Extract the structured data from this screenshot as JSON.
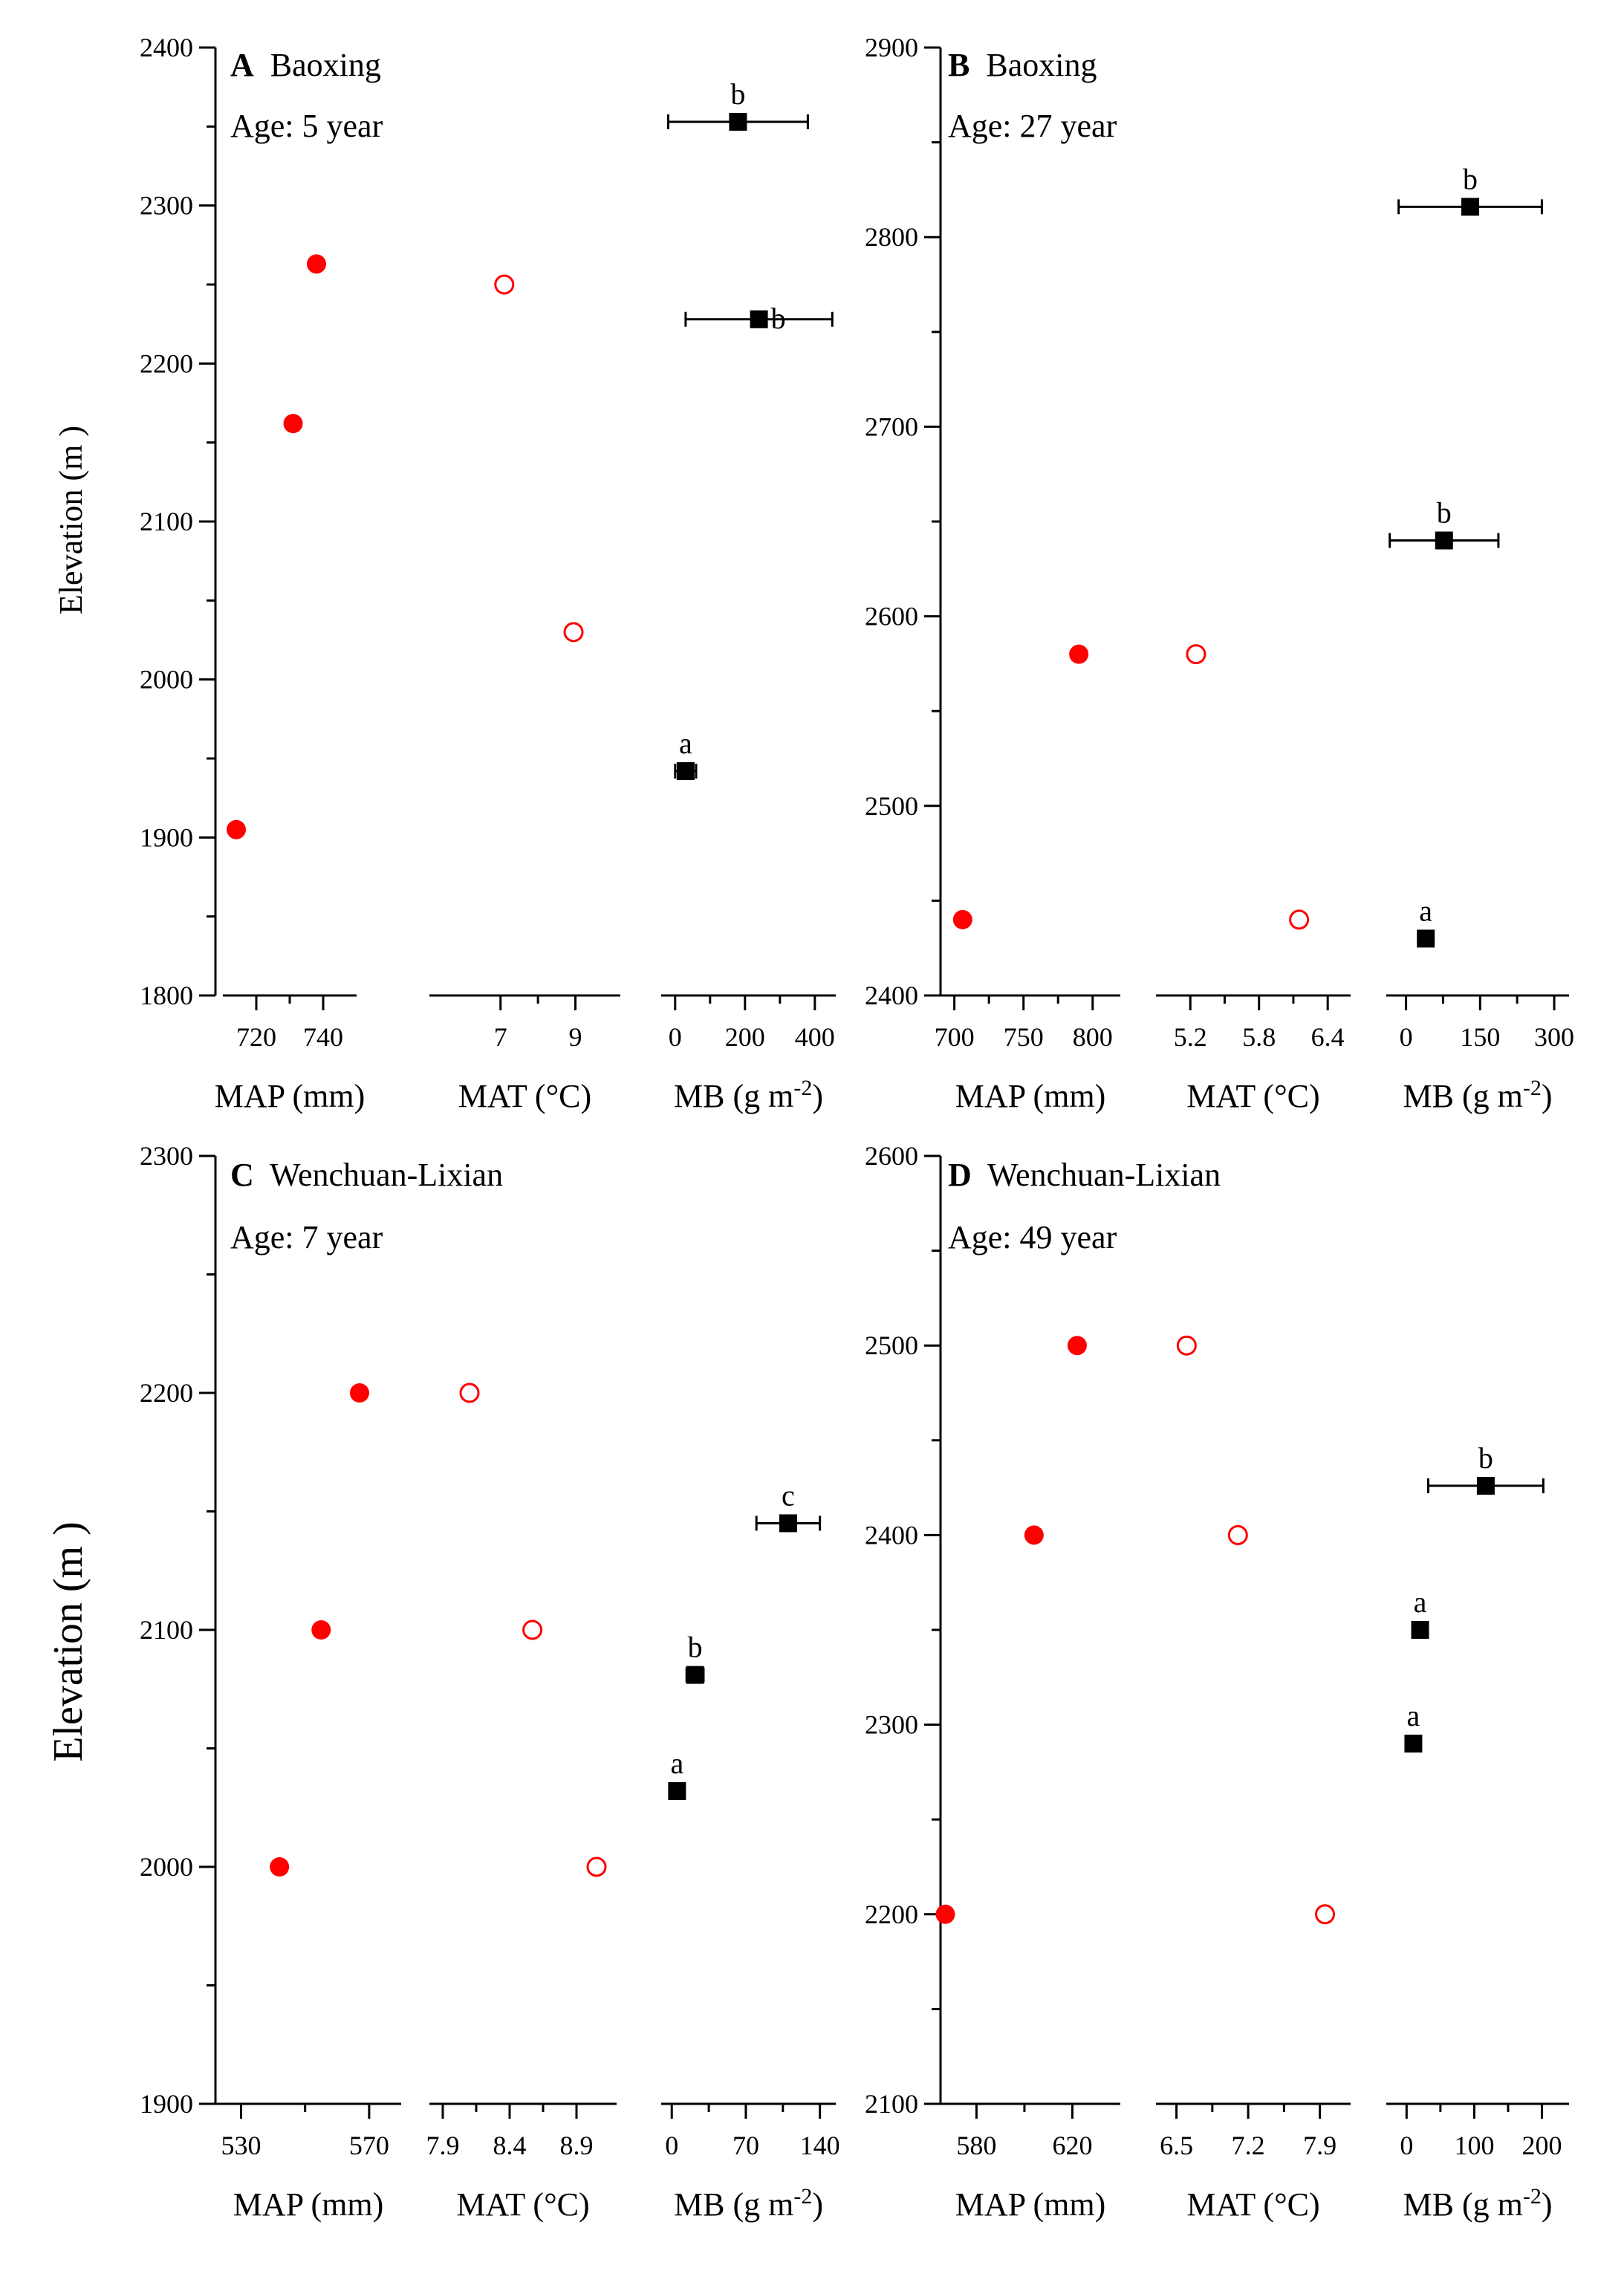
{
  "colors": {
    "map_marker": "#ff0000",
    "mat_marker": "#ff0000",
    "mb_marker": "#000000",
    "axis": "#000000"
  },
  "chart_data": [
    {
      "type": "scatter",
      "panel": "A",
      "site": "Baoxing",
      "age_label": "Age: 5 year",
      "ylabel": "Elevation (m )",
      "ylim": [
        1800,
        2400
      ],
      "yticks": [
        1800,
        1900,
        2000,
        2100,
        2200,
        2300,
        2400
      ],
      "subplots": [
        {
          "key": "MAP",
          "xlabel": "MAP (mm)",
          "xlim": [
            710,
            750
          ],
          "xticks": [
            720,
            740
          ],
          "marker": "filled-circle",
          "points": [
            {
              "x": 714,
              "y": 1905
            },
            {
              "x": 731,
              "y": 2162
            },
            {
              "x": 738,
              "y": 2263
            }
          ]
        },
        {
          "key": "MAT",
          "xlabel": "MAT (°C)",
          "xlim": [
            5.1,
            10.2
          ],
          "xticks": [
            7,
            9
          ],
          "marker": "open-circle",
          "points": [
            {
              "x": 7.1,
              "y": 2250
            },
            {
              "x": 8.95,
              "y": 2030
            }
          ]
        },
        {
          "key": "MB",
          "xlabel": "MB (g m-2)",
          "xlim": [
            -40,
            460
          ],
          "xticks": [
            0,
            200,
            400
          ],
          "marker": "square",
          "points": [
            {
              "x": 180,
              "y": 2353,
              "err": 200,
              "label": "b",
              "label_pos": "above"
            },
            {
              "x": 240,
              "y": 2228,
              "err": 210,
              "label": "b",
              "label_pos": "right"
            },
            {
              "x": 30,
              "y": 1942,
              "err": 30,
              "label": "a",
              "label_pos": "above"
            }
          ]
        }
      ]
    },
    {
      "type": "scatter",
      "panel": "B",
      "site": "Baoxing",
      "age_label": "Age: 27 year",
      "ylabel": "",
      "ylim": [
        2400,
        2900
      ],
      "yticks": [
        2400,
        2500,
        2600,
        2700,
        2800,
        2900
      ],
      "subplots": [
        {
          "key": "MAP",
          "xlabel": "MAP (mm)",
          "xlim": [
            690,
            820
          ],
          "xticks": [
            700,
            750,
            800
          ],
          "marker": "filled-circle",
          "points": [
            {
              "x": 706,
              "y": 2440
            },
            {
              "x": 790,
              "y": 2580
            }
          ]
        },
        {
          "key": "MAT",
          "xlabel": "MAT (°C)",
          "xlim": [
            4.9,
            6.6
          ],
          "xticks": [
            5.2,
            5.8,
            6.4
          ],
          "marker": "open-circle",
          "points": [
            {
              "x": 5.25,
              "y": 2580
            },
            {
              "x": 6.15,
              "y": 2440
            }
          ]
        },
        {
          "key": "MB",
          "xlabel": "MB (g m-2)",
          "xlim": [
            -40,
            330
          ],
          "xticks": [
            0,
            150,
            300
          ],
          "marker": "square",
          "points": [
            {
              "x": 40,
              "y": 2430,
              "err": 0,
              "label": "a",
              "label_pos": "above"
            },
            {
              "x": 77,
              "y": 2640,
              "err": 110,
              "label": "b",
              "label_pos": "above"
            },
            {
              "x": 130,
              "y": 2816,
              "err": 145,
              "label": "b",
              "label_pos": "above"
            }
          ]
        }
      ]
    },
    {
      "type": "scatter",
      "panel": "C",
      "site": "Wenchuan-Lixian",
      "age_label": "Age: 7 year",
      "ylabel": "Elevation (m )",
      "ylim": [
        1900,
        2300
      ],
      "yticks": [
        1900,
        2000,
        2100,
        2200,
        2300
      ],
      "subplots": [
        {
          "key": "MAP",
          "xlabel": "MAP (mm)",
          "xlim": [
            522,
            580
          ],
          "xticks": [
            530,
            570
          ],
          "marker": "filled-circle",
          "points": [
            {
              "x": 542,
              "y": 2000
            },
            {
              "x": 555,
              "y": 2100
            },
            {
              "x": 567,
              "y": 2200
            }
          ]
        },
        {
          "key": "MAT",
          "xlabel": "MAT (°C)",
          "xlim": [
            7.8,
            9.2
          ],
          "xticks": [
            7.9,
            8.4,
            8.9
          ],
          "marker": "open-circle",
          "points": [
            {
              "x": 8.1,
              "y": 2200
            },
            {
              "x": 8.57,
              "y": 2100
            },
            {
              "x": 9.05,
              "y": 2000
            }
          ]
        },
        {
          "key": "MB",
          "xlabel": "MB (g m-2)",
          "xlim": [
            -10,
            155
          ],
          "xticks": [
            0,
            70,
            140
          ],
          "marker": "square",
          "points": [
            {
              "x": 5,
              "y": 2032,
              "err": 0,
              "label": "a",
              "label_pos": "above"
            },
            {
              "x": 22,
              "y": 2081,
              "err": 8,
              "label": "b",
              "label_pos": "above"
            },
            {
              "x": 110,
              "y": 2145,
              "err": 30,
              "label": "c",
              "label_pos": "above"
            }
          ]
        }
      ]
    },
    {
      "type": "scatter",
      "panel": "D",
      "site": "Wenchuan-Lixian",
      "age_label": "Age: 49 year",
      "ylabel": "",
      "ylim": [
        2100,
        2600
      ],
      "yticks": [
        2100,
        2200,
        2300,
        2400,
        2500,
        2600
      ],
      "subplots": [
        {
          "key": "MAP",
          "xlabel": "MAP (mm)",
          "xlim": [
            565,
            640
          ],
          "xticks": [
            580,
            620
          ],
          "marker": "filled-circle",
          "points": [
            {
              "x": 567,
              "y": 2200
            },
            {
              "x": 604,
              "y": 2400
            },
            {
              "x": 622,
              "y": 2500
            }
          ]
        },
        {
          "key": "MAT",
          "xlabel": "MAT (°C)",
          "xlim": [
            6.3,
            8.2
          ],
          "xticks": [
            6.5,
            7.2,
            7.9
          ],
          "marker": "open-circle",
          "points": [
            {
              "x": 6.6,
              "y": 2500
            },
            {
              "x": 7.1,
              "y": 2400
            },
            {
              "x": 7.95,
              "y": 2200
            }
          ]
        },
        {
          "key": "MB",
          "xlabel": "MB (g m-2)",
          "xlim": [
            -30,
            240
          ],
          "xticks": [
            0,
            100,
            200
          ],
          "marker": "square",
          "points": [
            {
              "x": 10,
              "y": 2290,
              "err": 0,
              "label": "a",
              "label_pos": "above"
            },
            {
              "x": 20,
              "y": 2350,
              "err": 0,
              "label": "a",
              "label_pos": "above"
            },
            {
              "x": 117,
              "y": 2426,
              "err": 85,
              "label": "b",
              "label_pos": "above"
            }
          ]
        }
      ]
    }
  ]
}
